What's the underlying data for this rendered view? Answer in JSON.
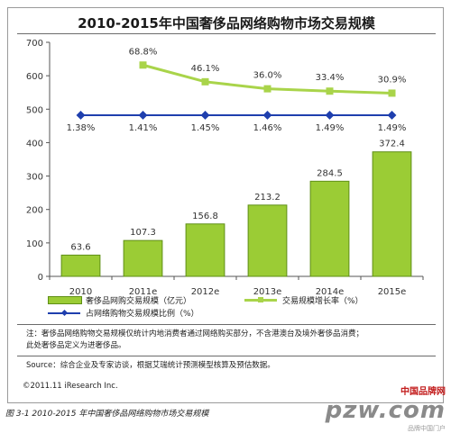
{
  "chart_data": {
    "type": "bar",
    "title": "2010-2015年中国奢侈品网络购物市场交易规模",
    "categories": [
      "2010",
      "2011e",
      "2012e",
      "2013e",
      "2014e",
      "2015e"
    ],
    "ylim": [
      0,
      700
    ],
    "yticks": [
      "0",
      "100",
      "200",
      "300",
      "400",
      "500",
      "600",
      "700"
    ],
    "series": [
      {
        "name": "奢侈品网购交易规模（亿元）",
        "kind": "bar",
        "color": "#9bcc35",
        "values": [
          63.6,
          107.3,
          156.8,
          213.2,
          284.5,
          372.4
        ],
        "labels": [
          "63.6",
          "107.3",
          "156.8",
          "213.2",
          "284.5",
          "372.4"
        ]
      },
      {
        "name": "交易规模增长率（%）",
        "kind": "line",
        "color": "#a9d44a",
        "points": [
          {
            "x": "2011e",
            "plot_value": 632,
            "label": "68.8%"
          },
          {
            "x": "2012e",
            "plot_value": 582,
            "label": "46.1%"
          },
          {
            "x": "2013e",
            "plot_value": 561,
            "label": "36.0%"
          },
          {
            "x": "2014e",
            "plot_value": 554,
            "label": "33.4%"
          },
          {
            "x": "2015e",
            "plot_value": 548,
            "label": "30.9%"
          }
        ]
      },
      {
        "name": "占网络购物交易规模比例（%）",
        "kind": "line",
        "color": "#1f3fae",
        "points": [
          {
            "x": "2010",
            "plot_value": 482,
            "label": "1.38%"
          },
          {
            "x": "2011e",
            "plot_value": 482,
            "label": "1.41%"
          },
          {
            "x": "2012e",
            "plot_value": 482,
            "label": "1.45%"
          },
          {
            "x": "2013e",
            "plot_value": 482,
            "label": "1.46%"
          },
          {
            "x": "2014e",
            "plot_value": 482,
            "label": "1.49%"
          },
          {
            "x": "2015e",
            "plot_value": 482,
            "label": "1.49%"
          }
        ]
      }
    ],
    "grid": false,
    "legend": "bottom"
  },
  "notes": {
    "note_line1": "注：奢侈品网络购物交易规模仅统计内地消费者通过网络购买部分，不含港澳台及境外奢侈品消费；",
    "note_line2": "此处奢侈品定义为进奢侈品。",
    "source": "Source：综合企业及专家访谈，根据艾瑞统计预测模型核算及预估数据。",
    "copyright": "©2011.11 iResearch Inc."
  },
  "caption": "图 3-1 2010-2015 年中国奢侈品网络购物市场交易规模",
  "watermark": {
    "main": "pzw.com",
    "red": "中国品牌网",
    "sub": "品牌中国门户"
  }
}
